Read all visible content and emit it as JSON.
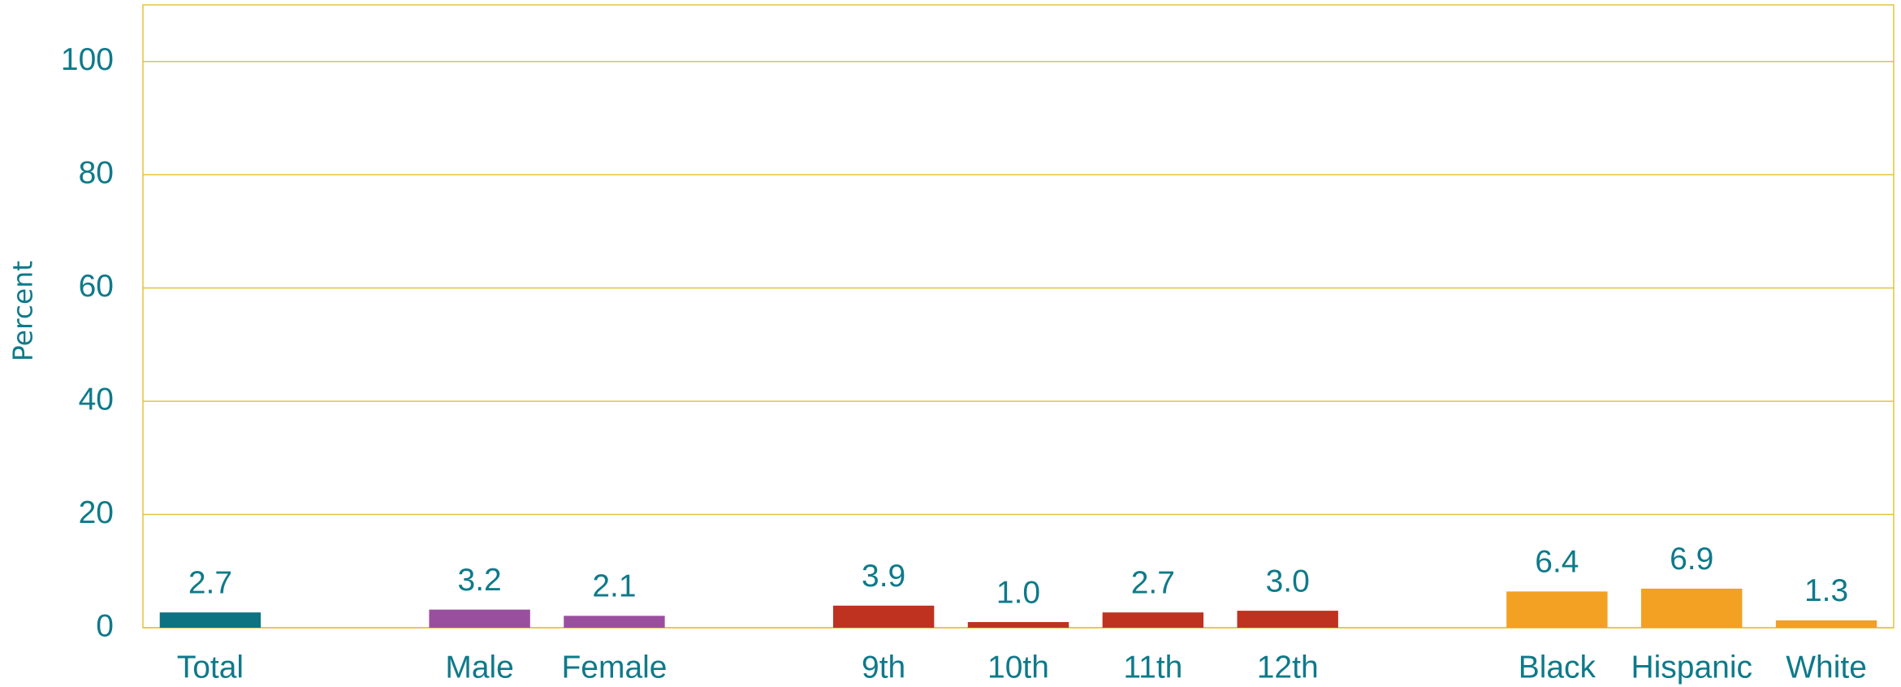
{
  "chart_data": {
    "type": "bar",
    "y_label": "Percent",
    "categories": [
      "Total",
      null,
      "Male",
      "Female",
      null,
      "9th",
      "10th",
      "11th",
      "12th",
      null,
      "Black",
      "Hispanic",
      "White"
    ],
    "values": [
      2.7,
      null,
      3.2,
      2.1,
      null,
      3.9,
      1.0,
      2.7,
      3.0,
      null,
      6.4,
      6.9,
      1.3
    ],
    "value_labels": [
      "2.7",
      null,
      "3.2",
      "2.1",
      null,
      "3.9",
      "1.0",
      "2.7",
      "3.0",
      null,
      "6.4",
      "6.9",
      "1.3"
    ],
    "colors": [
      "#0d7282",
      null,
      "#9a4f9e",
      "#9a4f9e",
      null,
      "#bf321f",
      "#bf321f",
      "#bf321f",
      "#bf321f",
      null,
      "#f2a122",
      "#f2a122",
      "#f2a122"
    ],
    "ylim": [
      0,
      110
    ],
    "yticks": [
      0,
      20,
      40,
      60,
      80,
      100
    ],
    "grid": true
  }
}
